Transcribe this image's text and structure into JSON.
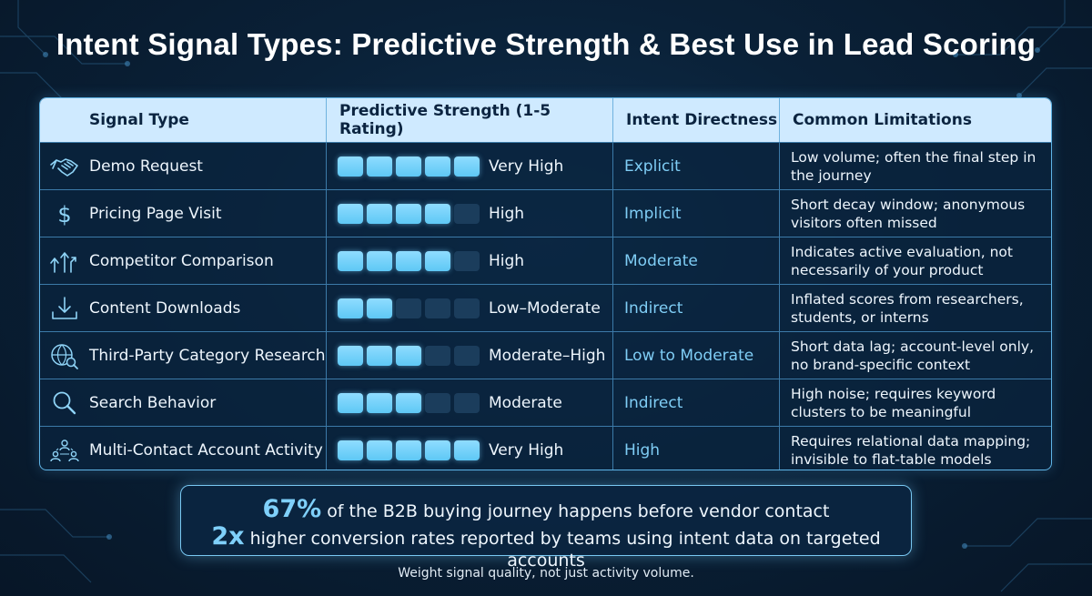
{
  "title": "Intent Signal Types: Predictive Strength & Best Use in Lead Scoring",
  "table": {
    "headers": {
      "signal": "Signal Type",
      "strength": "Predictive Strength (1-5 Rating)",
      "directness": "Intent Directness",
      "limitations": "Common Limitations"
    },
    "rows": [
      {
        "icon": "handshake-icon",
        "signal": "Demo Request",
        "rating": 5,
        "strength": "Very High",
        "directness": "Explicit",
        "limitation": "Low volume; often the final step in the journey"
      },
      {
        "icon": "dollar-icon",
        "signal": "Pricing Page Visit",
        "rating": 4,
        "strength": "High",
        "directness": "Implicit",
        "limitation": "Short decay window; anonymous visitors often missed"
      },
      {
        "icon": "comparison-arrows-icon",
        "signal": "Competitor Comparison",
        "rating": 4,
        "strength": "High",
        "directness": "Moderate",
        "limitation": "Indicates active evaluation, not necessarily of your product"
      },
      {
        "icon": "download-icon",
        "signal": "Content Downloads",
        "rating": 2,
        "strength": "Low–Moderate",
        "directness": "Indirect",
        "limitation": "Inflated scores from researchers, students, or interns"
      },
      {
        "icon": "globe-search-icon",
        "signal": "Third-Party Category Research",
        "rating": 3,
        "strength": "Moderate–High",
        "directness": "Low to Moderate",
        "limitation": "Short data lag; account-level only, no brand-specific context"
      },
      {
        "icon": "magnifier-icon",
        "signal": "Search Behavior",
        "rating": 3,
        "strength": "Moderate",
        "directness": "Indirect",
        "limitation": "High noise; requires keyword clusters to be meaningful"
      },
      {
        "icon": "people-network-icon",
        "signal": "Multi-Contact Account Activity",
        "rating": 5,
        "strength": "Very High",
        "directness": "High",
        "limitation": "Requires relational data mapping; invisible to flat-table models"
      }
    ]
  },
  "callout": {
    "stat1_value": "67%",
    "stat1_text": "of the B2B buying journey happens before vendor contact",
    "stat2_value": "2x",
    "stat2_text": "higher conversion rates reported by teams using intent data on targeted accounts"
  },
  "footnote": "Weight signal quality, not just activity volume.",
  "colors": {
    "accent": "#7fd0fa",
    "header_bg": "#cfeaff",
    "bar_on": "#6ccdf7",
    "bar_off": "#1b3d5c"
  }
}
